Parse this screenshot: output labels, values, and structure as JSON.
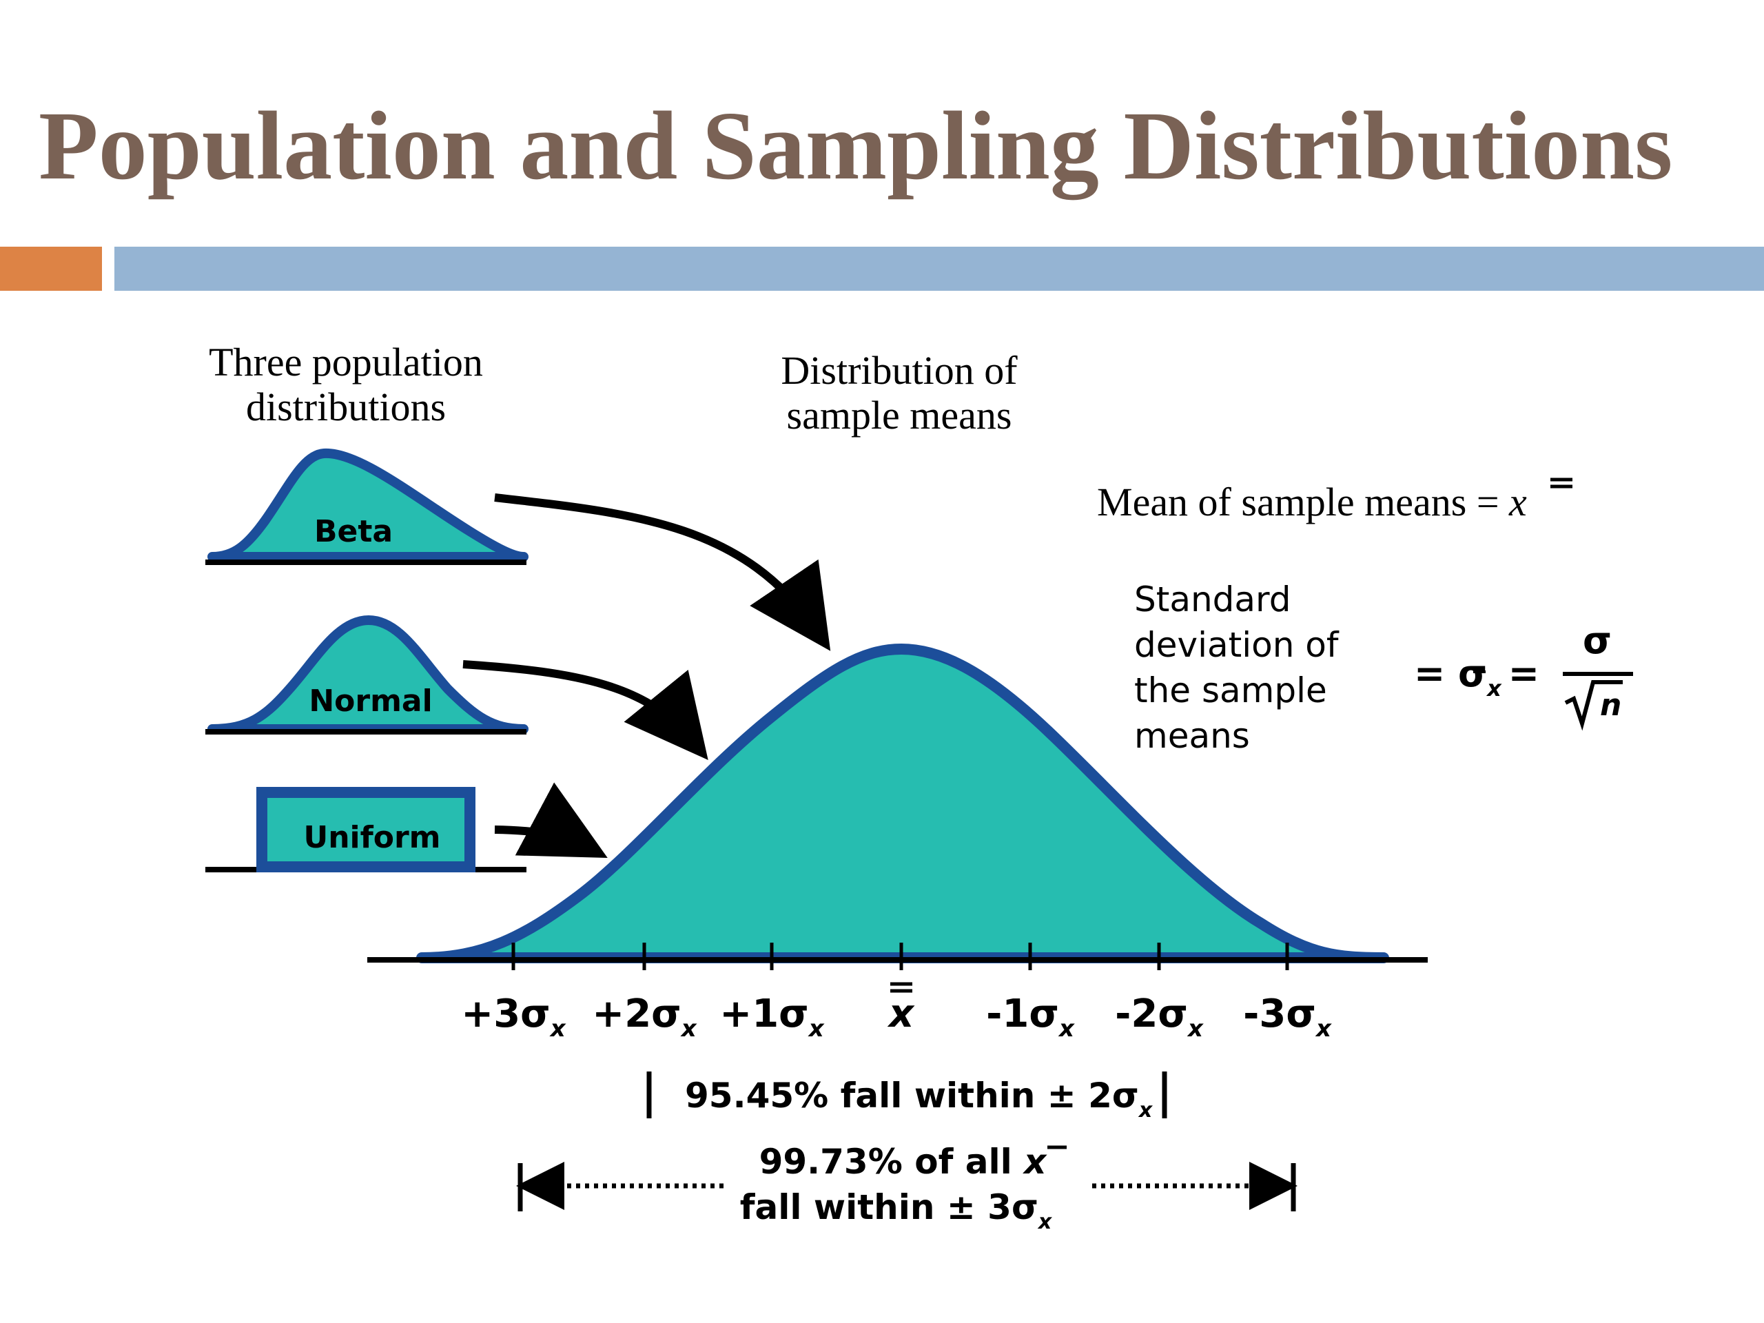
{
  "slide": {
    "title": "Population and Sampling Distributions"
  },
  "colors": {
    "title": "#7a6255",
    "accent_orange": "#dd8345",
    "accent_blue": "#95b4d3",
    "curve_fill": "#26bdb0",
    "curve_stroke": "#1c4e9a",
    "ink": "#000000"
  },
  "population": {
    "heading_line1": "Three population",
    "heading_line2": "distributions",
    "beta_label": "Beta",
    "normal_label": "Normal",
    "uniform_label": "Uniform"
  },
  "sampling": {
    "heading_line1": "Distribution of",
    "heading_line2": "sample means",
    "mean_text": "Mean of sample means = ",
    "mean_symbol": "x",
    "sd_line1": "Standard",
    "sd_line2": "deviation of",
    "sd_line3": "the sample",
    "sd_line4": "means",
    "formula_eq": "= σ",
    "formula_sub": "x",
    "formula_eq2": "=",
    "formula_num": "σ",
    "formula_den": "n"
  },
  "axis": {
    "ticks": [
      {
        "prefix": "+3σ",
        "sub": "x"
      },
      {
        "prefix": "+2σ",
        "sub": "x"
      },
      {
        "prefix": "+1σ",
        "sub": "x"
      },
      {
        "prefix": "",
        "sub": "",
        "center": "x"
      },
      {
        "prefix": "-1σ",
        "sub": "x"
      },
      {
        "prefix": "-2σ",
        "sub": "x"
      },
      {
        "prefix": "-3σ",
        "sub": "x"
      }
    ]
  },
  "annotations": {
    "range95_text": "95.45% fall within ± 2σ",
    "range95_sub": "x",
    "range99_line1": "99.73% of all ",
    "range99_line1_sym": "x",
    "range99_line2": "fall within ± 3σ",
    "range99_sub": "x"
  }
}
